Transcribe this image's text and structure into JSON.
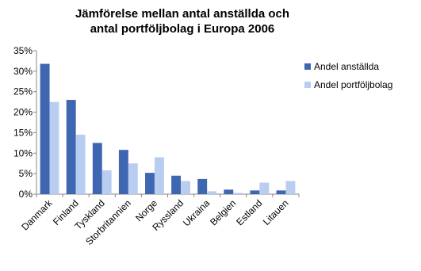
{
  "chart_data": {
    "type": "bar",
    "title": "Jämförelse mellan antal anställda och antal portföljbolag i Europa 2006",
    "categories": [
      "Danmark",
      "Finland",
      "Tyskland",
      "Storbritannien",
      "Norge",
      "Ryssland",
      "Ukraina",
      "Belgien",
      "Estland",
      "Litauen"
    ],
    "series": [
      {
        "name": "Andel anställda",
        "color": "#3f66b0",
        "values": [
          31.8,
          23.0,
          12.5,
          10.8,
          5.2,
          4.5,
          3.7,
          1.1,
          0.9,
          0.9
        ]
      },
      {
        "name": "Andel portföljbolag",
        "color": "#b8cdf0",
        "values": [
          22.5,
          14.5,
          5.8,
          7.5,
          9.0,
          3.2,
          0.7,
          0.3,
          2.8,
          3.2
        ]
      }
    ],
    "ylim": [
      0,
      35
    ],
    "yticks": [
      {
        "value": 0,
        "label": "0%"
      },
      {
        "value": 5,
        "label": "5%"
      },
      {
        "value": 10,
        "label": "10%"
      },
      {
        "value": 15,
        "label": "15%"
      },
      {
        "value": 20,
        "label": "20%"
      },
      {
        "value": 25,
        "label": "25%"
      },
      {
        "value": 30,
        "label": "30%"
      },
      {
        "value": 35,
        "label": "35%"
      }
    ],
    "grid": false,
    "legend": "right"
  }
}
